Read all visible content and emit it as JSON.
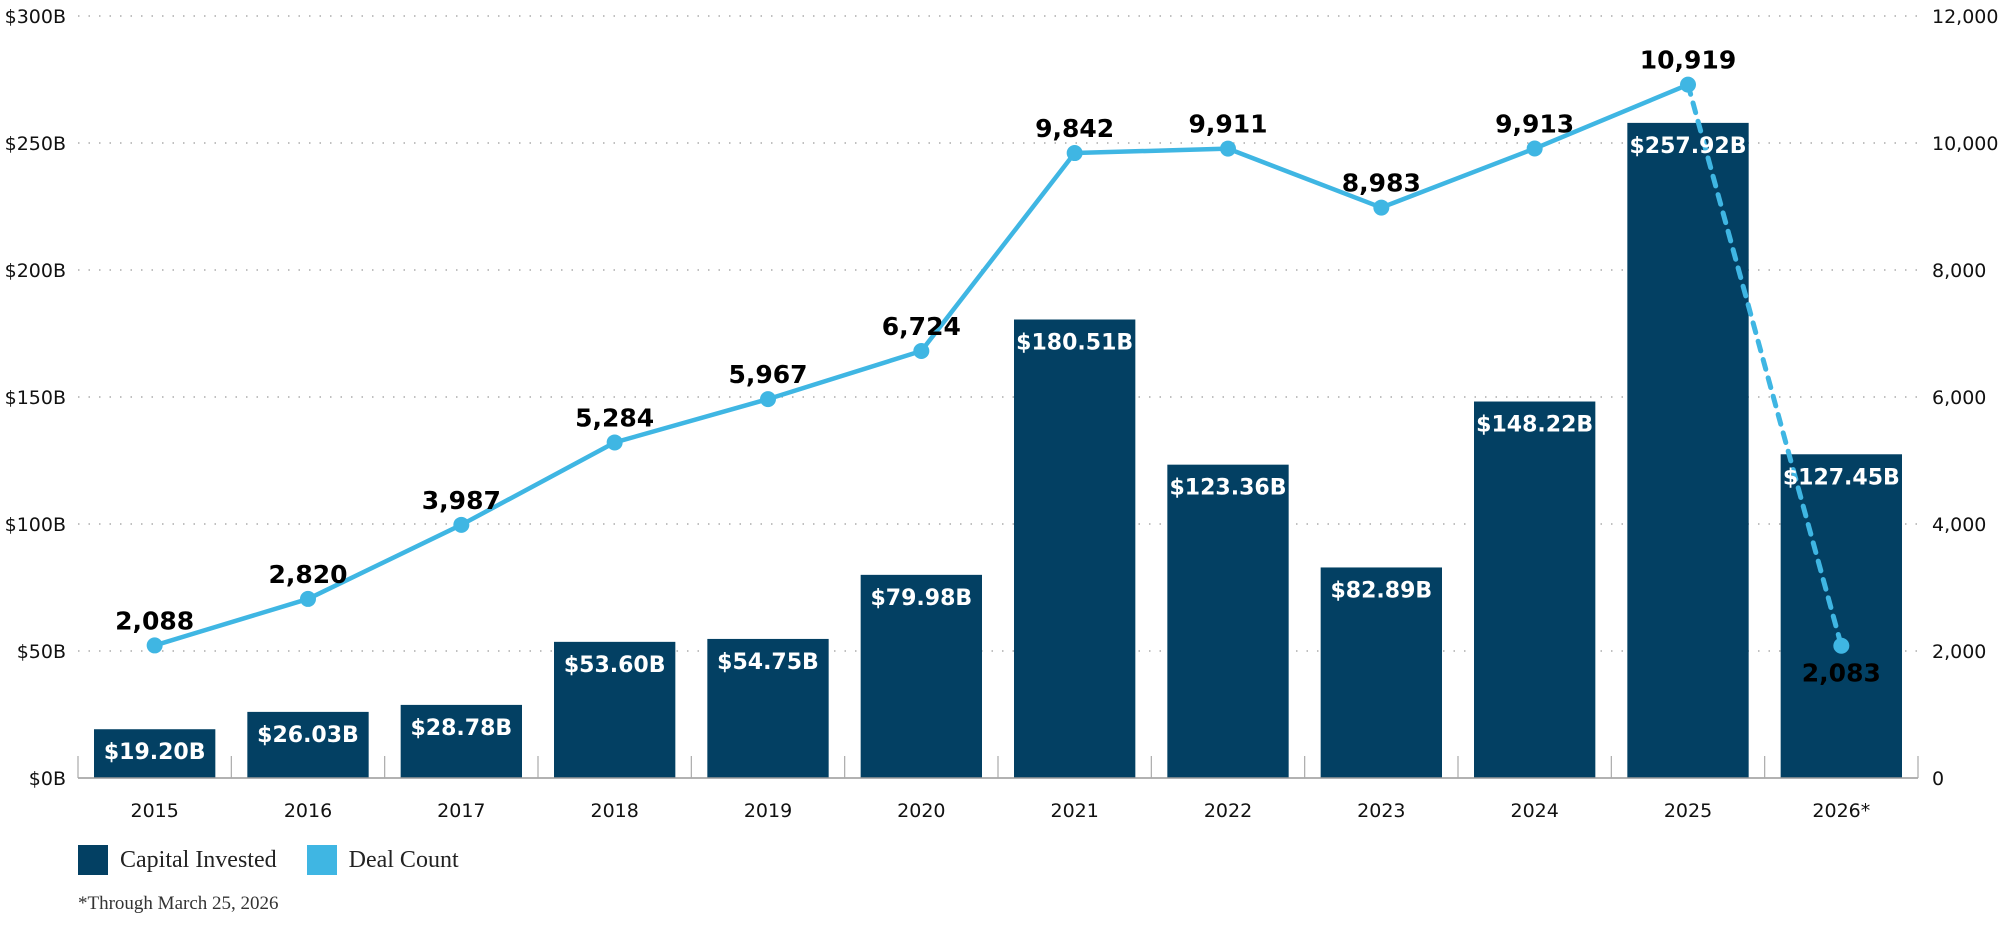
{
  "chart_data": {
    "type": "bar",
    "title": "",
    "xlabel": "",
    "categories": [
      "2015",
      "2016",
      "2017",
      "2018",
      "2019",
      "2020",
      "2021",
      "2022",
      "2023",
      "2024",
      "2025",
      "2026*"
    ],
    "series": [
      {
        "name": "Capital Invested",
        "type": "bar",
        "axis": "left",
        "color": "#034063",
        "values": [
          19.2,
          26.03,
          28.78,
          53.6,
          54.75,
          79.98,
          180.51,
          123.36,
          82.89,
          148.22,
          257.92,
          127.45
        ],
        "labels": [
          "$19.20B",
          "$26.03B",
          "$28.78B",
          "$53.60B",
          "$54.75B",
          "$79.98B",
          "$180.51B",
          "$123.36B",
          "$82.89B",
          "$148.22B",
          "$257.92B",
          "$127.45B"
        ]
      },
      {
        "name": "Deal Count",
        "type": "line",
        "axis": "right",
        "color": "#3FB6E3",
        "values": [
          2088,
          2820,
          3987,
          5284,
          5967,
          6724,
          9842,
          9911,
          8983,
          9913,
          10919,
          2083
        ],
        "labels": [
          "2,088",
          "2,820",
          "3,987",
          "5,284",
          "5,967",
          "6,724",
          "9,842",
          "9,911",
          "8,983",
          "9,913",
          "10,919",
          "2,083"
        ],
        "dashed_from_index": 10
      }
    ],
    "y_left": {
      "ylim": [
        0,
        300
      ],
      "ticks": [
        0,
        50,
        100,
        150,
        200,
        250,
        300
      ],
      "tick_labels": [
        "$0B",
        "$50B",
        "$100B",
        "$150B",
        "$200B",
        "$250B",
        "$300B"
      ]
    },
    "y_right": {
      "ylim": [
        0,
        12000
      ],
      "ticks": [
        0,
        2000,
        4000,
        6000,
        8000,
        10000,
        12000
      ],
      "tick_labels": [
        "0",
        "2,000",
        "4,000",
        "6,000",
        "8,000",
        "10,000",
        "12,000"
      ]
    },
    "grid": true,
    "legend": {
      "position": "bottom-left",
      "entries": [
        {
          "label": "Capital Invested",
          "color": "#034063"
        },
        {
          "label": "Deal Count",
          "color": "#3FB6E3"
        }
      ]
    },
    "footnote": "*Through March 25, 2026"
  }
}
